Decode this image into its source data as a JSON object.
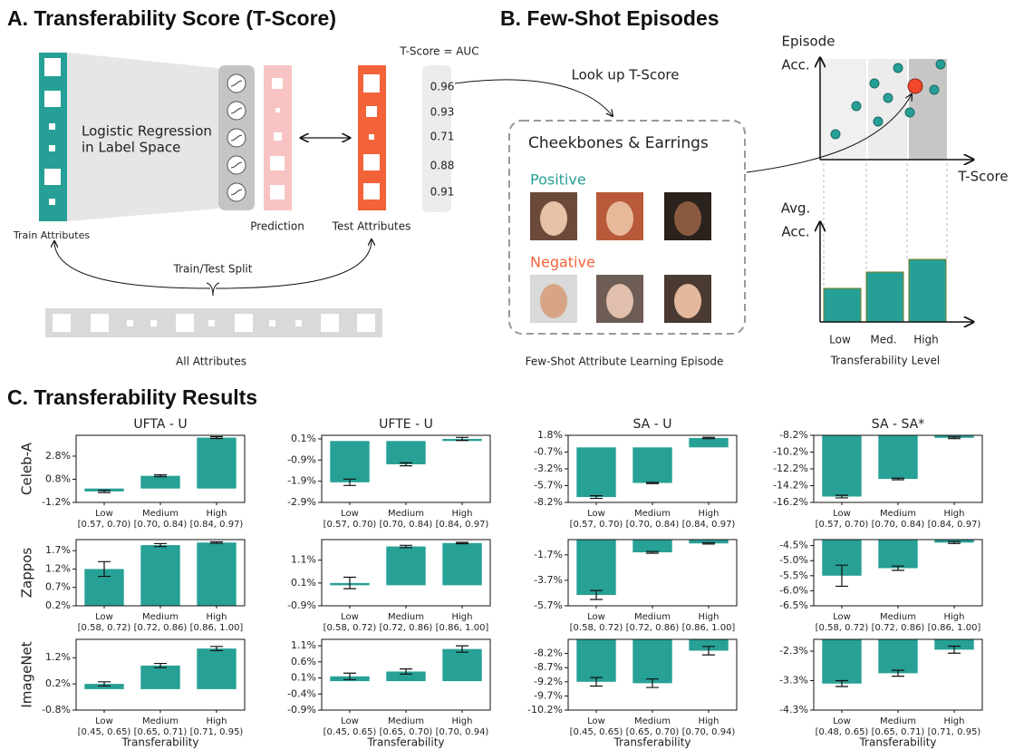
{
  "panel_a": {
    "title": "A. Transferability Score (T-Score)",
    "model_label": [
      "Logistic Regression",
      "in Label Space"
    ],
    "prediction": "Prediction",
    "test_attributes": "Test Attributes",
    "train_attributes": "Train Attributes",
    "split": "Train/Test Split",
    "all_attributes": "All Attributes",
    "auc_title": "T-Score = AUC",
    "auc_values": [
      0.96,
      0.93,
      0.71,
      0.88,
      0.91
    ]
  },
  "panel_b": {
    "title": "B. Few-Shot Episodes",
    "lookup": "Look up T-Score",
    "episode_title": "Cheekbones & Earrings",
    "positive": "Positive",
    "negative": "Negative",
    "caption": "Few-Shot Attribute Learning Episode",
    "top_ylabel": [
      "Episode",
      "Acc."
    ],
    "top_xlabel": "T-Score",
    "bottom_ylabel": [
      "Avg.",
      "Acc."
    ],
    "levels": [
      "Low",
      "Med.",
      "High"
    ],
    "bottom_xlabel": "Transferability Level"
  },
  "panel_c": {
    "title": "C. Transferability Results"
  },
  "chart_data": [
    {
      "type": "bar",
      "title": "UFTA - U",
      "ylabel": "Celeb-A",
      "color": "#27a096",
      "categories": [
        "Low",
        "Medium",
        "High"
      ],
      "category_ranges": [
        "[0.57, 0.70)",
        "[0.70, 0.84)",
        "[0.84, 0.97)"
      ],
      "values": [
        -0.25,
        1.1,
        4.4
      ],
      "errors": [
        0.1,
        0.08,
        0.08
      ],
      "ylim": [
        -1.2,
        4.6
      ],
      "yticks": [
        {
          "value": -1.2,
          "label": "-1.2%"
        },
        {
          "value": 0.8,
          "label": "0.8%"
        },
        {
          "value": 2.8,
          "label": "2.8%"
        }
      ]
    },
    {
      "type": "bar",
      "title": "UFTE - U",
      "color": "#27a096",
      "categories": [
        "Low",
        "Medium",
        "High"
      ],
      "category_ranges": [
        "[0.57, 0.70)",
        "[0.70, 0.84)",
        "[0.84, 0.97)"
      ],
      "values": [
        -1.95,
        -1.1,
        0.1
      ],
      "errors": [
        0.15,
        0.07,
        0.07
      ],
      "ylim": [
        -2.9,
        0.27
      ],
      "yticks": [
        {
          "value": -2.9,
          "label": "-2.9%"
        },
        {
          "value": -1.9,
          "label": "-1.9%"
        },
        {
          "value": -0.9,
          "label": "-0.9%"
        },
        {
          "value": 0.1,
          "label": "0.1%"
        }
      ]
    },
    {
      "type": "bar",
      "title": "SA - U",
      "color": "#27a096",
      "categories": [
        "Low",
        "Medium",
        "High"
      ],
      "category_ranges": [
        "[0.57, 0.70)",
        "[0.70, 0.84)",
        "[0.84, 0.97)"
      ],
      "values": [
        -7.4,
        -5.3,
        1.4
      ],
      "errors": [
        0.2,
        0.1,
        0.1
      ],
      "ylim": [
        -8.2,
        1.8
      ],
      "yticks": [
        {
          "value": -8.2,
          "label": "-8.2%"
        },
        {
          "value": -5.7,
          "label": "-5.7%"
        },
        {
          "value": -3.2,
          "label": "-3.2%"
        },
        {
          "value": -0.7,
          "label": "-0.7%"
        },
        {
          "value": 1.8,
          "label": "1.8%"
        }
      ]
    },
    {
      "type": "bar",
      "title": "SA - SA*",
      "color": "#27a096",
      "categories": [
        "Low",
        "Medium",
        "High"
      ],
      "category_ranges": [
        "[0.57, 0.70)",
        "[0.70, 0.84)",
        "[0.84, 0.97)"
      ],
      "values": [
        -15.5,
        -13.4,
        -8.5
      ],
      "errors": [
        0.15,
        0.1,
        0.1
      ],
      "ylim": [
        -16.2,
        -8.2
      ],
      "yticks": [
        {
          "value": -16.2,
          "label": "-16.2%"
        },
        {
          "value": -14.2,
          "label": "-14.2%"
        },
        {
          "value": -12.2,
          "label": "-12.2%"
        },
        {
          "value": -10.2,
          "label": "-10.2%"
        },
        {
          "value": -8.2,
          "label": "-8.2%"
        }
      ]
    },
    {
      "type": "bar",
      "ylabel": "Zappos",
      "color": "#27a096",
      "categories": [
        "Low",
        "Medium",
        "High"
      ],
      "category_ranges": [
        "[0.58, 0.72)",
        "[0.72, 0.86)",
        "[0.86, 1.00]"
      ],
      "values": [
        1.2,
        1.85,
        1.92
      ],
      "errors": [
        0.2,
        0.04,
        0.02
      ],
      "ylim": [
        0.2,
        2.0
      ],
      "yticks": [
        {
          "value": 0.2,
          "label": "0.2%"
        },
        {
          "value": 0.7,
          "label": "0.7%"
        },
        {
          "value": 1.2,
          "label": "1.2%"
        },
        {
          "value": 1.7,
          "label": "1.7%"
        }
      ]
    },
    {
      "type": "bar",
      "color": "#27a096",
      "categories": [
        "Low",
        "Medium",
        "High"
      ],
      "category_ranges": [
        "[0.58, 0.72)",
        "[0.72, 0.86)",
        "[0.86, 1.00]"
      ],
      "values": [
        0.1,
        1.7,
        1.85
      ],
      "errors": [
        0.25,
        0.05,
        0.03
      ],
      "ylim": [
        -0.9,
        2.0
      ],
      "yticks": [
        {
          "value": -0.9,
          "label": "-0.9%"
        },
        {
          "value": 0.1,
          "label": "0.1%"
        },
        {
          "value": 1.1,
          "label": "1.1%"
        }
      ]
    },
    {
      "type": "bar",
      "color": "#27a096",
      "categories": [
        "Low",
        "Medium",
        "High"
      ],
      "category_ranges": [
        "[0.58, 0.72)",
        "[0.72, 0.86)",
        "[0.86, 1.00]"
      ],
      "values": [
        -4.85,
        -1.5,
        -0.8
      ],
      "errors": [
        0.35,
        0.07,
        0.05
      ],
      "ylim": [
        -5.7,
        -0.5
      ],
      "yticks": [
        {
          "value": -5.7,
          "label": "-5.7%"
        },
        {
          "value": -3.7,
          "label": "-3.7%"
        },
        {
          "value": -1.7,
          "label": "-1.7%"
        }
      ]
    },
    {
      "type": "bar",
      "color": "#27a096",
      "categories": [
        "Low",
        "Medium",
        "High"
      ],
      "category_ranges": [
        "[0.58, 0.72)",
        "[0.72, 0.86)",
        "[0.86, 1.00]"
      ],
      "values": [
        -5.5,
        -5.25,
        -4.4
      ],
      "errors": [
        0.35,
        0.07,
        0.03
      ],
      "ylim": [
        -6.5,
        -4.3
      ],
      "yticks": [
        {
          "value": -6.5,
          "label": "-6.5%"
        },
        {
          "value": -6.0,
          "label": "-6.0%"
        },
        {
          "value": -5.5,
          "label": "-5.5%"
        },
        {
          "value": -5.0,
          "label": "-5.0%"
        },
        {
          "value": -4.5,
          "label": "-4.5%"
        }
      ]
    },
    {
      "type": "bar",
      "ylabel": "ImageNet",
      "xlabel": "Transferability",
      "color": "#27a096",
      "categories": [
        "Low",
        "Medium",
        "High"
      ],
      "category_ranges": [
        "[0.45, 0.65)",
        "[0.65, 0.71)",
        "[0.71, 0.95)"
      ],
      "values": [
        0.2,
        0.9,
        1.55
      ],
      "errors": [
        0.08,
        0.08,
        0.08
      ],
      "ylim": [
        -0.8,
        1.9
      ],
      "yticks": [
        {
          "value": -0.8,
          "label": "-0.8%"
        },
        {
          "value": 0.2,
          "label": "0.2%"
        },
        {
          "value": 1.2,
          "label": "1.2%"
        }
      ]
    },
    {
      "type": "bar",
      "xlabel": "Transferability",
      "color": "#27a096",
      "categories": [
        "Low",
        "Medium",
        "High"
      ],
      "category_ranges": [
        "[0.45, 0.65)",
        "[0.65, 0.70)",
        "[0.70, 0.94)"
      ],
      "values": [
        0.15,
        0.3,
        1.0
      ],
      "errors": [
        0.1,
        0.08,
        0.1
      ],
      "ylim": [
        -0.9,
        1.3
      ],
      "yticks": [
        {
          "value": -0.9,
          "label": "-0.9%"
        },
        {
          "value": -0.4,
          "label": "-0.4%"
        },
        {
          "value": 0.1,
          "label": "0.1%"
        },
        {
          "value": 0.6,
          "label": "0.6%"
        },
        {
          "value": 1.1,
          "label": "1.1%"
        }
      ]
    },
    {
      "type": "bar",
      "xlabel": "Transferability",
      "color": "#27a096",
      "categories": [
        "Low",
        "Medium",
        "High"
      ],
      "category_ranges": [
        "[0.45, 0.65)",
        "[0.65, 0.70)",
        "[0.70, 0.94)"
      ],
      "values": [
        -9.2,
        -9.25,
        -8.1
      ],
      "errors": [
        0.15,
        0.15,
        0.15
      ],
      "ylim": [
        -10.2,
        -7.7
      ],
      "yticks": [
        {
          "value": -10.2,
          "label": "-10.2%"
        },
        {
          "value": -9.7,
          "label": "-9.7%"
        },
        {
          "value": -9.2,
          "label": "-9.2%"
        },
        {
          "value": -8.7,
          "label": "-8.7%"
        },
        {
          "value": -8.2,
          "label": "-8.2%"
        }
      ]
    },
    {
      "type": "bar",
      "xlabel": "Transferability",
      "color": "#27a096",
      "categories": [
        "Low",
        "Medium",
        "High"
      ],
      "category_ranges": [
        "[0.48, 0.65)",
        "[0.65, 0.71)",
        "[0.71, 0.95)"
      ],
      "values": [
        -3.4,
        -3.05,
        -2.25
      ],
      "errors": [
        0.1,
        0.1,
        0.12
      ],
      "ylim": [
        -4.3,
        -1.9
      ],
      "yticks": [
        {
          "value": -4.3,
          "label": "-4.3%"
        },
        {
          "value": -3.3,
          "label": "-3.3%"
        },
        {
          "value": -2.3,
          "label": "-2.3%"
        }
      ]
    }
  ]
}
